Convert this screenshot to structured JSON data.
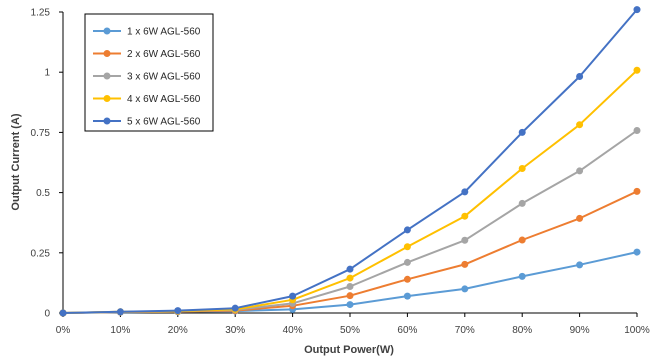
{
  "chart_data": {
    "type": "line",
    "title": "",
    "xlabel": "Output Power(W)",
    "ylabel": "Output Current (A)",
    "categories": [
      "0%",
      "10%",
      "20%",
      "30%",
      "40%",
      "50%",
      "60%",
      "70%",
      "80%",
      "90%",
      "100%"
    ],
    "y_ticks": [
      "0",
      "0.25",
      "0.5",
      "0.75",
      "1",
      "1.25"
    ],
    "ylim": [
      0,
      1.25
    ],
    "grid": false,
    "legend_position": "top-left",
    "series": [
      {
        "name": "1 x 6W AGL-560",
        "color": "#5b9bd5",
        "values": [
          0.0,
          0.003,
          0.005,
          0.008,
          0.015,
          0.035,
          0.07,
          0.1,
          0.152,
          0.2,
          0.253
        ]
      },
      {
        "name": "2 x 6W AGL-560",
        "color": "#ed7d31",
        "values": [
          0.0,
          0.004,
          0.006,
          0.01,
          0.03,
          0.072,
          0.14,
          0.202,
          0.303,
          0.393,
          0.505
        ]
      },
      {
        "name": "3 x 6W AGL-560",
        "color": "#a5a5a5",
        "values": [
          0.0,
          0.005,
          0.007,
          0.013,
          0.04,
          0.11,
          0.21,
          0.302,
          0.455,
          0.59,
          0.758
        ]
      },
      {
        "name": "4 x 6W AGL-560",
        "color": "#ffc000",
        "values": [
          0.0,
          0.005,
          0.008,
          0.015,
          0.055,
          0.145,
          0.275,
          0.402,
          0.6,
          0.782,
          1.008
        ]
      },
      {
        "name": "5 x 6W AGL-560",
        "color": "#4472c4",
        "values": [
          0.0,
          0.005,
          0.01,
          0.02,
          0.07,
          0.182,
          0.345,
          0.503,
          0.75,
          0.982,
          1.26
        ]
      }
    ]
  }
}
